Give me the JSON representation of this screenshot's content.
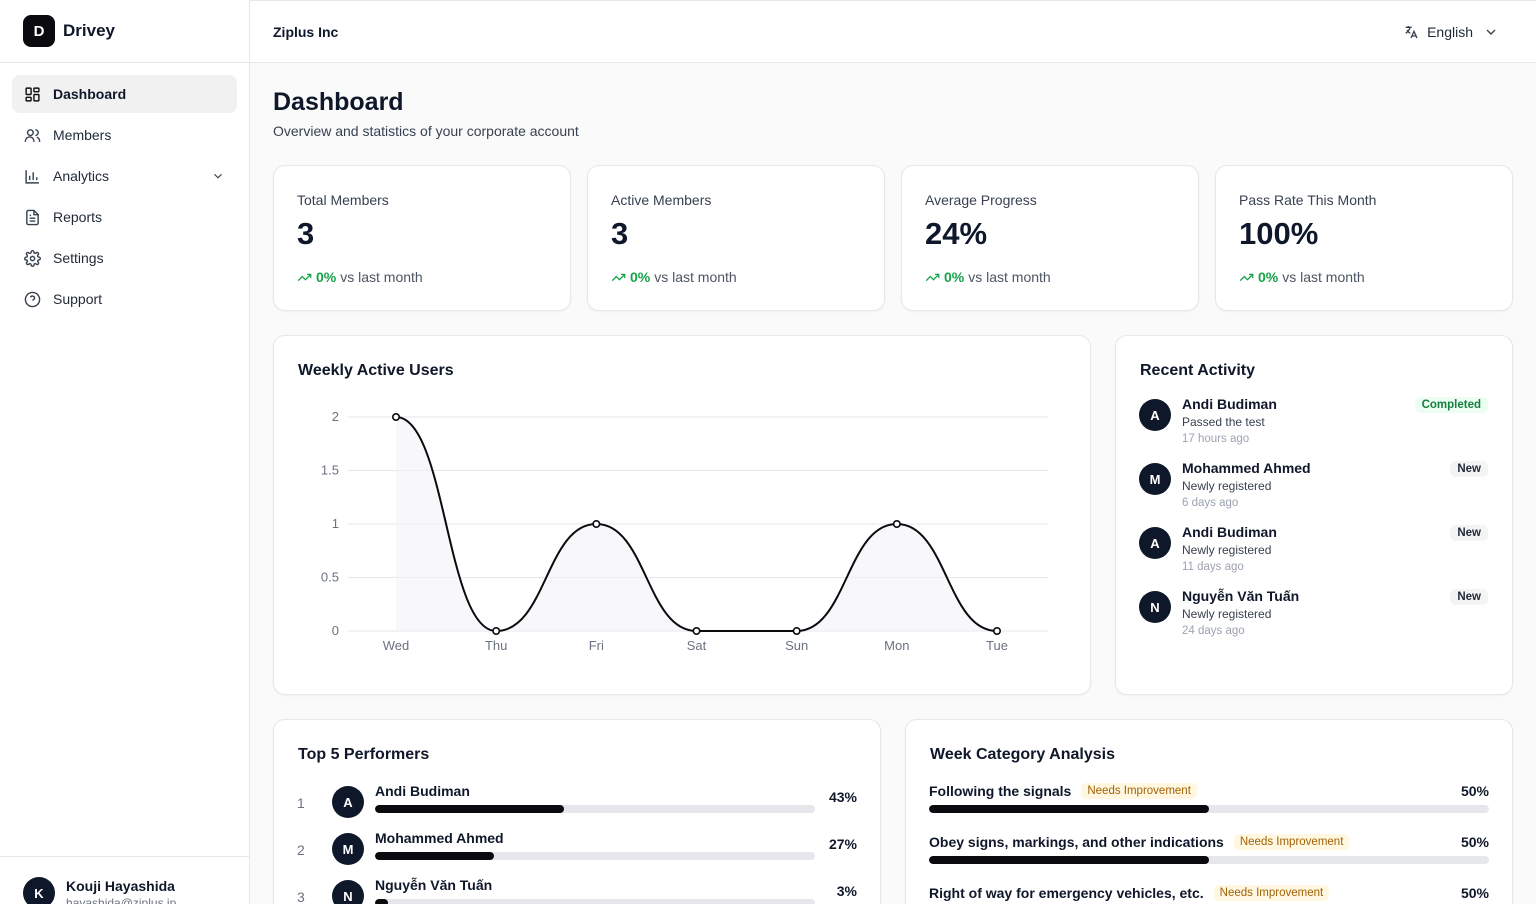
{
  "brand": {
    "logo_letter": "D",
    "name": "Drivey"
  },
  "sidebar": {
    "items": [
      {
        "label": "Dashboard",
        "icon": "dashboard-icon",
        "active": true
      },
      {
        "label": "Members",
        "icon": "users-icon"
      },
      {
        "label": "Analytics",
        "icon": "bar-chart-icon",
        "expandable": true
      },
      {
        "label": "Reports",
        "icon": "document-icon"
      },
      {
        "label": "Settings",
        "icon": "gear-icon"
      },
      {
        "label": "Support",
        "icon": "help-circle-icon"
      }
    ],
    "user": {
      "initial": "K",
      "name": "Kouji Hayashida",
      "email": "hayashida@ziplus.jp"
    }
  },
  "header": {
    "company": "Ziplus Inc",
    "language": "English"
  },
  "page": {
    "title": "Dashboard",
    "subtitle": "Overview and statistics of your corporate account"
  },
  "stats": [
    {
      "label": "Total Members",
      "value": "3",
      "change": "0%",
      "suffix": "vs last month"
    },
    {
      "label": "Active Members",
      "value": "3",
      "change": "0%",
      "suffix": "vs last month"
    },
    {
      "label": "Average Progress",
      "value": "24%",
      "change": "0%",
      "suffix": "vs last month"
    },
    {
      "label": "Pass Rate This Month",
      "value": "100%",
      "change": "0%",
      "suffix": "vs last month"
    }
  ],
  "chart_data": {
    "type": "line",
    "title": "Weekly Active Users",
    "categories": [
      "Wed",
      "Thu",
      "Fri",
      "Sat",
      "Sun",
      "Mon",
      "Tue"
    ],
    "values": [
      2,
      0,
      1,
      0,
      0,
      1,
      0
    ],
    "yticks": [
      "0",
      "0.5",
      "1",
      "1.5",
      "2"
    ],
    "ylim": [
      0,
      2
    ],
    "xlabel": "",
    "ylabel": "",
    "grid": true,
    "colors": {
      "line": "#0b0b0f",
      "grid": "#e5e7eb"
    }
  },
  "activity": {
    "title": "Recent Activity",
    "items": [
      {
        "initial": "A",
        "name": "Andi Budiman",
        "desc": "Passed the test",
        "time": "17 hours ago",
        "badge": "Completed",
        "kind": "done"
      },
      {
        "initial": "M",
        "name": "Mohammed Ahmed",
        "desc": "Newly registered",
        "time": "6 days ago",
        "badge": "New",
        "kind": "new"
      },
      {
        "initial": "A",
        "name": "Andi Budiman",
        "desc": "Newly registered",
        "time": "11 days ago",
        "badge": "New",
        "kind": "new"
      },
      {
        "initial": "N",
        "name": "Nguyễn Văn Tuấn",
        "desc": "Newly registered",
        "time": "24 days ago",
        "badge": "New",
        "kind": "new"
      }
    ]
  },
  "performers": {
    "title": "Top 5 Performers",
    "items": [
      {
        "rank": "1",
        "initial": "A",
        "name": "Andi Budiman",
        "pct": "43%",
        "value": 43
      },
      {
        "rank": "2",
        "initial": "M",
        "name": "Mohammed Ahmed",
        "pct": "27%",
        "value": 27
      },
      {
        "rank": "3",
        "initial": "N",
        "name": "Nguyễn Văn Tuấn",
        "pct": "3%",
        "value": 3
      }
    ]
  },
  "categories": {
    "title": "Week Category Analysis",
    "items": [
      {
        "name": "Following the signals",
        "badge": "Needs Improvement",
        "pct": "50%",
        "value": 50
      },
      {
        "name": "Obey signs, markings, and other indications",
        "badge": "Needs Improvement",
        "pct": "50%",
        "value": 50
      },
      {
        "name": "Right of way for emergency vehicles, etc.",
        "badge": "Needs Improvement",
        "pct": "50%",
        "value": 50
      }
    ]
  }
}
